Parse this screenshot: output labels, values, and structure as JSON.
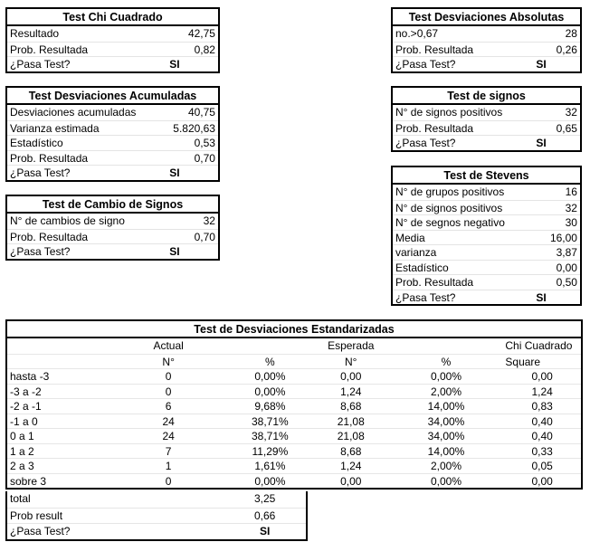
{
  "colors": {
    "border": "#000000",
    "grid_line": "#e4e4e4",
    "text": "#000000",
    "background": "#ffffff"
  },
  "tables": {
    "chi": {
      "title": "Test Chi Cuadrado",
      "rows": [
        {
          "label": "Resultado",
          "value": "42,75"
        },
        {
          "label": "Prob. Resultada",
          "value": "0,82"
        },
        {
          "label": "¿Pasa Test?",
          "value": "SI"
        }
      ]
    },
    "absolutas": {
      "title": "Test Desviaciones Absolutas",
      "rows": [
        {
          "label": "no.>0,67",
          "value": "28"
        },
        {
          "label": "Prob. Resultada",
          "value": "0,26"
        },
        {
          "label": "¿Pasa Test?",
          "value": "SI"
        }
      ]
    },
    "acumuladas": {
      "title": "Test Desviaciones Acumuladas",
      "rows": [
        {
          "label": "Desviaciones acumuladas",
          "value": "40,75"
        },
        {
          "label": "Varianza estimada",
          "value": "5.820,63"
        },
        {
          "label": "Estadístico",
          "value": "0,53"
        },
        {
          "label": "Prob. Resultada",
          "value": "0,70"
        },
        {
          "label": "¿Pasa Test?",
          "value": "SI"
        }
      ]
    },
    "signos": {
      "title": "Test de signos",
      "rows": [
        {
          "label": "N° de signos positivos",
          "value": "32"
        },
        {
          "label": "Prob. Resultada",
          "value": "0,65"
        },
        {
          "label": "¿Pasa Test?",
          "value": "SI"
        }
      ]
    },
    "cambio": {
      "title": "Test de Cambio de Signos",
      "rows": [
        {
          "label": "N° de cambios de signo",
          "value": "32"
        },
        {
          "label": "Prob. Resultada",
          "value": "0,70"
        },
        {
          "label": "¿Pasa Test?",
          "value": "SI"
        }
      ]
    },
    "stevens": {
      "title": "Test de Stevens",
      "rows": [
        {
          "label": "N° de grupos positivos",
          "value": "16"
        },
        {
          "label": "N° de signos positivos",
          "value": "32"
        },
        {
          "label": "N° de segnos negativo",
          "value": "30"
        },
        {
          "label": "Media",
          "value": "16,00"
        },
        {
          "label": "varianza",
          "value": "3,87"
        },
        {
          "label": "Estadístico",
          "value": "0,00"
        },
        {
          "label": "Prob. Resultada",
          "value": "0,50"
        },
        {
          "label": "¿Pasa Test?",
          "value": "SI"
        }
      ]
    }
  },
  "estandarizadas": {
    "title": "Test de Desviaciones Estandarizadas",
    "group_headers": {
      "actual": "Actual",
      "esperada": "Esperada",
      "chi": "Chi Cuadrado"
    },
    "col_headers": {
      "n1": "N°",
      "p1": "%",
      "n2": "N°",
      "p2": "%",
      "sq": "Square"
    },
    "rows": [
      {
        "label": "hasta -3",
        "an": "0",
        "ap": "0,00%",
        "en": "0,00",
        "ep": "0,00%",
        "chi": "0,00"
      },
      {
        "label": "-3 a -2",
        "an": "0",
        "ap": "0,00%",
        "en": "1,24",
        "ep": "2,00%",
        "chi": "1,24"
      },
      {
        "label": "-2 a -1",
        "an": "6",
        "ap": "9,68%",
        "en": "8,68",
        "ep": "14,00%",
        "chi": "0,83"
      },
      {
        "label": "-1 a 0",
        "an": "24",
        "ap": "38,71%",
        "en": "21,08",
        "ep": "34,00%",
        "chi": "0,40"
      },
      {
        "label": "0 a 1",
        "an": "24",
        "ap": "38,71%",
        "en": "21,08",
        "ep": "34,00%",
        "chi": "0,40"
      },
      {
        "label": "1 a 2",
        "an": "7",
        "ap": "11,29%",
        "en": "8,68",
        "ep": "14,00%",
        "chi": "0,33"
      },
      {
        "label": "2 a 3",
        "an": "1",
        "ap": "1,61%",
        "en": "1,24",
        "ep": "2,00%",
        "chi": "0,05"
      },
      {
        "label": "sobre 3",
        "an": "0",
        "ap": "0,00%",
        "en": "0,00",
        "ep": "0,00%",
        "chi": "0,00"
      }
    ],
    "footer": [
      {
        "label": "total",
        "value": "3,25"
      },
      {
        "label": "Prob result",
        "value": "0,66"
      },
      {
        "label": "¿Pasa Test?",
        "value": "SI"
      }
    ]
  }
}
